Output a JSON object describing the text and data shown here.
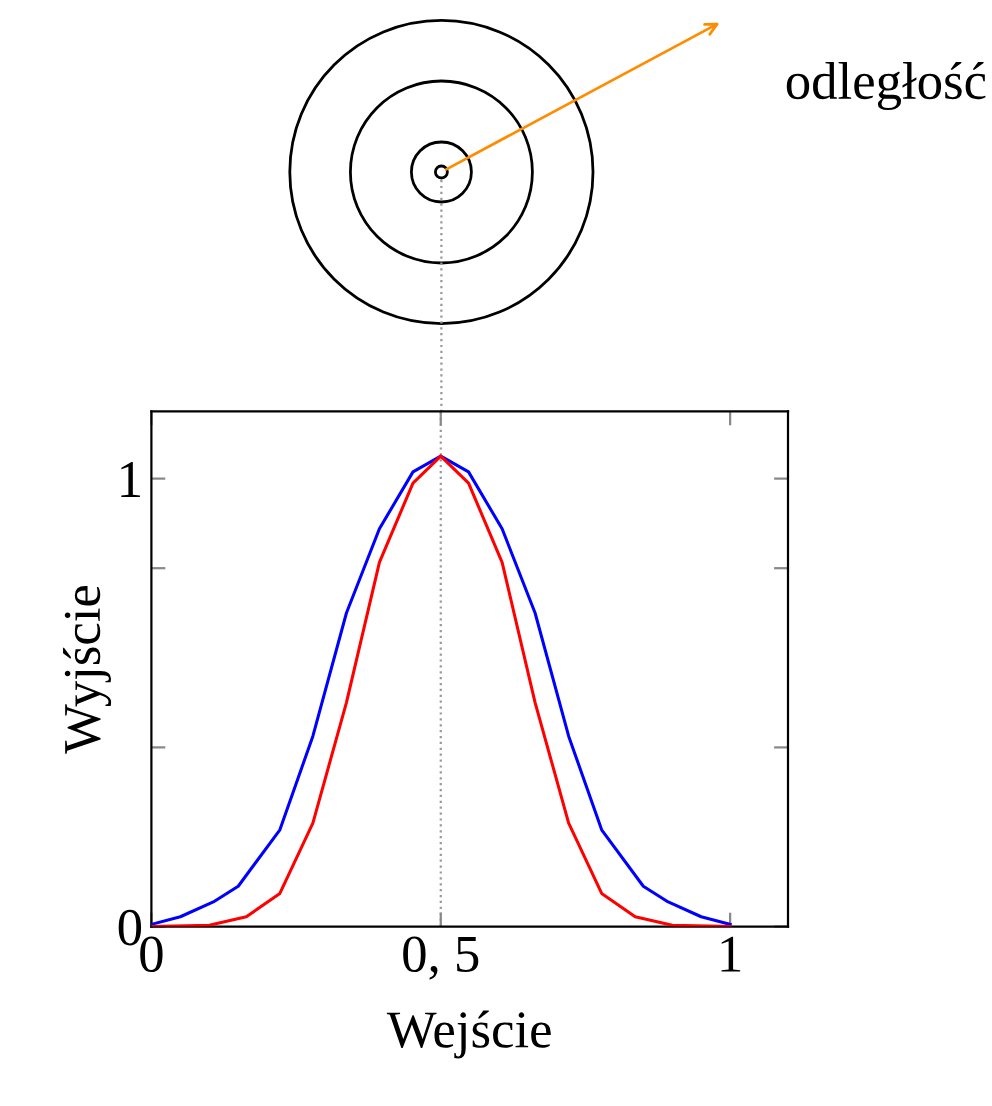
{
  "chart_data": {
    "type": "line",
    "xlabel": "Wejście",
    "ylabel": "Wyjście",
    "annotations": [
      "odległość"
    ],
    "xlim": [
      0,
      1.1
    ],
    "ylim": [
      0,
      1.15
    ],
    "xticks": [
      0,
      {
        "value": 0.5,
        "label": "0, 5"
      },
      1
    ],
    "yticks": [
      0,
      {
        "value": 0.4,
        "label": null
      },
      {
        "value": 0.8,
        "label": null
      },
      1
    ],
    "grid": false,
    "marker": "none",
    "line_style": "solid",
    "ref_lines": [
      {
        "axis": "x",
        "value": 0.5,
        "color": "#999999",
        "line_style": "dotted"
      }
    ],
    "series": [
      {
        "color": "#0000ff",
        "x": [
          0,
          0.05,
          0.107,
          0.15,
          0.222,
          0.279,
          0.337,
          0.394,
          0.452,
          0.5,
          0.548,
          0.606,
          0.663,
          0.721,
          0.778,
          0.85,
          0.893,
          0.95,
          1
        ],
        "values": [
          0.005,
          0.022,
          0.055,
          0.09,
          0.216,
          0.425,
          0.7,
          0.888,
          1.015,
          1.05,
          1.015,
          0.888,
          0.7,
          0.425,
          0.216,
          0.09,
          0.055,
          0.022,
          0.005
        ]
      },
      {
        "color": "#ff0000",
        "x": [
          0,
          0.1,
          0.164,
          0.222,
          0.279,
          0.337,
          0.394,
          0.452,
          0.5,
          0.548,
          0.606,
          0.663,
          0.721,
          0.778,
          0.836,
          0.9,
          1
        ],
        "values": [
          0,
          0.003,
          0.022,
          0.074,
          0.231,
          0.5,
          0.813,
          0.99,
          1.05,
          0.99,
          0.813,
          0.5,
          0.231,
          0.074,
          0.022,
          0.003,
          0
        ]
      }
    ]
  }
}
